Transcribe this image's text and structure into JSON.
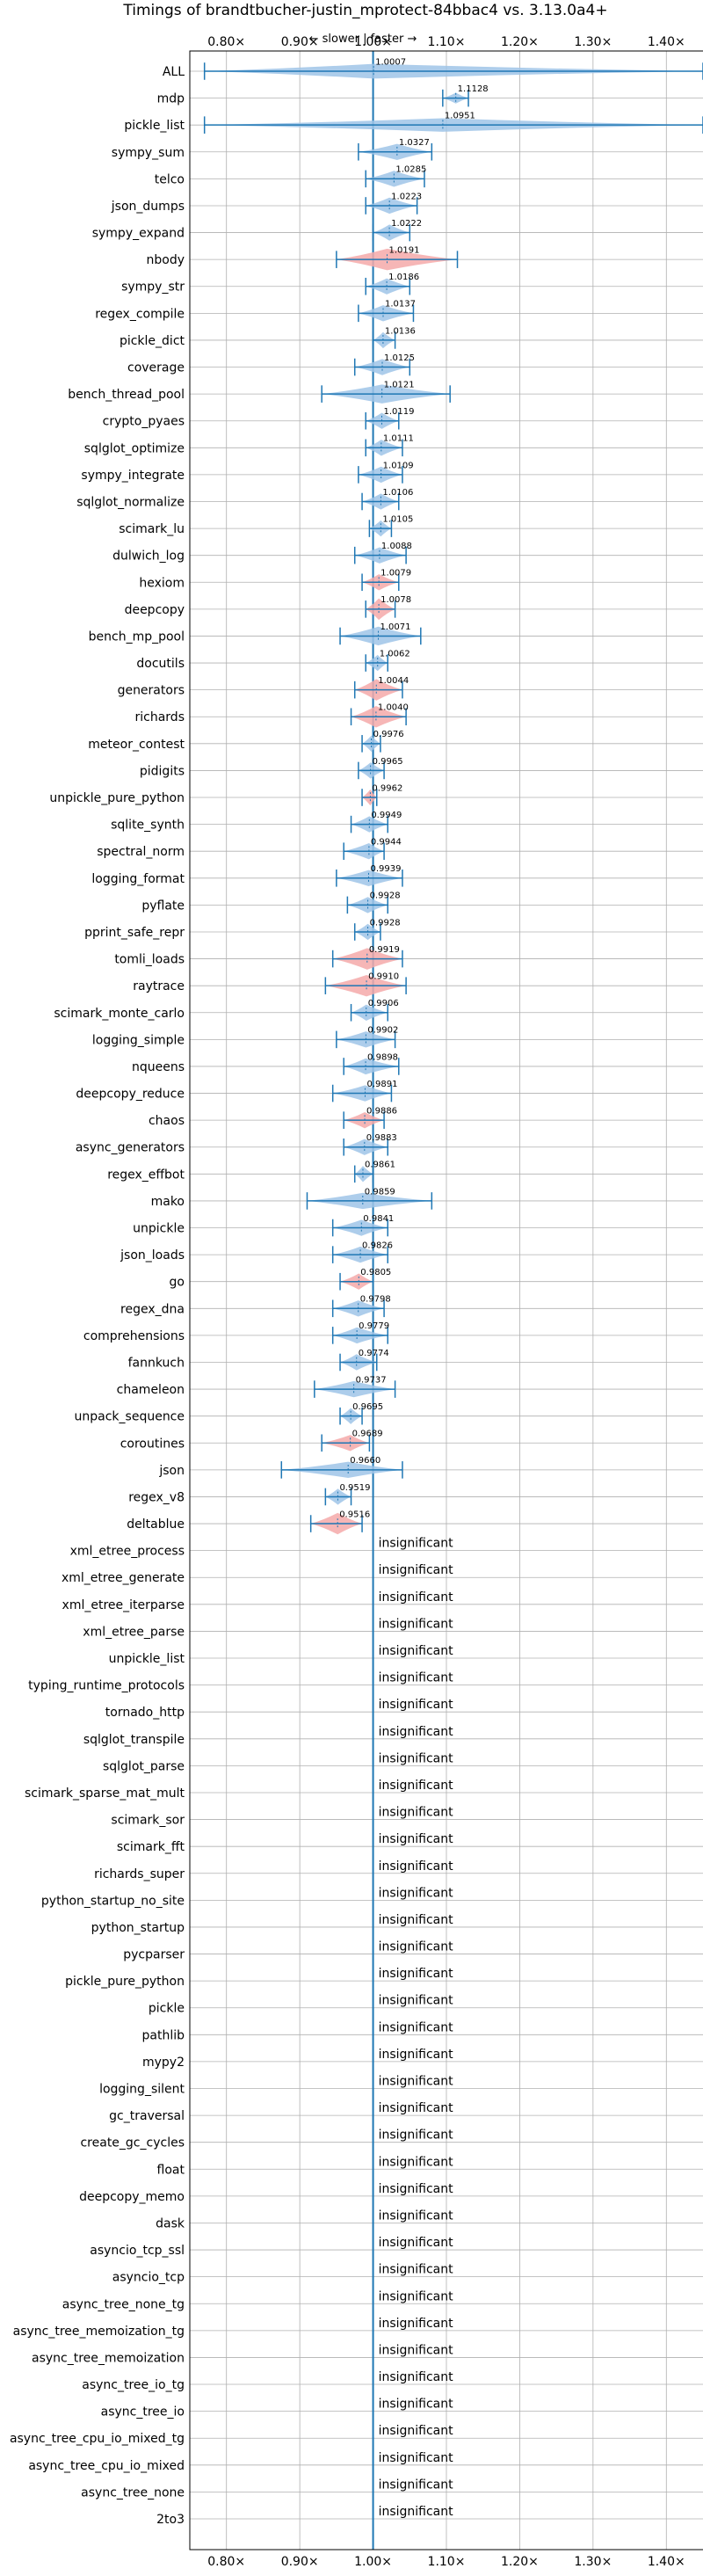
{
  "chart_data": {
    "type": "violin",
    "title": "Timings of brandtbucher-justin_mprotect-84bbac4 vs. 3.13.0a4+",
    "annotation": "← slower | faster →",
    "xlim": [
      0.75,
      1.45
    ],
    "xticks": [
      0.8,
      0.9,
      1.0,
      1.1,
      1.2,
      1.3,
      1.4
    ],
    "xtick_labels": [
      "0.80×",
      "0.90×",
      "1.00×",
      "1.10×",
      "1.20×",
      "1.30×",
      "1.40×"
    ],
    "reference_line": 1.0,
    "grid": true,
    "colors": {
      "faster": "#9fc4e7",
      "slower": "#f4a9a9",
      "line": "#1f77b4"
    },
    "insignificant_label": "insignificant",
    "benchmarks": [
      {
        "name": "ALL",
        "value": 1.0007,
        "label": "1.0007",
        "min": 0.77,
        "max": 1.45,
        "color": "faster",
        "w": 0.55
      },
      {
        "name": "mdp",
        "value": 1.1128,
        "label": "1.1128",
        "min": 1.095,
        "max": 1.13,
        "color": "faster",
        "w": 0.4
      },
      {
        "name": "pickle_list",
        "value": 1.0951,
        "label": "1.0951",
        "min": 0.77,
        "max": 1.45,
        "color": "faster",
        "w": 0.5
      },
      {
        "name": "sympy_sum",
        "value": 1.0327,
        "label": "1.0327",
        "min": 0.98,
        "max": 1.08,
        "color": "faster",
        "w": 0.6
      },
      {
        "name": "telco",
        "value": 1.0285,
        "label": "1.0285",
        "min": 0.99,
        "max": 1.07,
        "color": "faster",
        "w": 0.6
      },
      {
        "name": "json_dumps",
        "value": 1.0223,
        "label": "1.0223",
        "min": 0.99,
        "max": 1.06,
        "color": "faster",
        "w": 0.6
      },
      {
        "name": "sympy_expand",
        "value": 1.0222,
        "label": "1.0222",
        "min": 1.0,
        "max": 1.05,
        "color": "faster",
        "w": 0.6
      },
      {
        "name": "nbody",
        "value": 1.0191,
        "label": "1.0191",
        "min": 0.95,
        "max": 1.115,
        "color": "slower",
        "w": 0.8
      },
      {
        "name": "sympy_str",
        "value": 1.0186,
        "label": "1.0186",
        "min": 0.99,
        "max": 1.05,
        "color": "faster",
        "w": 0.6
      },
      {
        "name": "regex_compile",
        "value": 1.0137,
        "label": "1.0137",
        "min": 0.98,
        "max": 1.055,
        "color": "faster",
        "w": 0.6
      },
      {
        "name": "pickle_dict",
        "value": 1.0136,
        "label": "1.0136",
        "min": 1.0,
        "max": 1.03,
        "color": "faster",
        "w": 0.6
      },
      {
        "name": "coverage",
        "value": 1.0125,
        "label": "1.0125",
        "min": 0.975,
        "max": 1.05,
        "color": "faster",
        "w": 0.6
      },
      {
        "name": "bench_thread_pool",
        "value": 1.0121,
        "label": "1.0121",
        "min": 0.93,
        "max": 1.105,
        "color": "faster",
        "w": 0.7
      },
      {
        "name": "crypto_pyaes",
        "value": 1.0119,
        "label": "1.0119",
        "min": 0.99,
        "max": 1.035,
        "color": "faster",
        "w": 0.6
      },
      {
        "name": "sqlglot_optimize",
        "value": 1.0111,
        "label": "1.0111",
        "min": 0.99,
        "max": 1.04,
        "color": "faster",
        "w": 0.6
      },
      {
        "name": "sympy_integrate",
        "value": 1.0109,
        "label": "1.0109",
        "min": 0.98,
        "max": 1.04,
        "color": "faster",
        "w": 0.6
      },
      {
        "name": "sqlglot_normalize",
        "value": 1.0106,
        "label": "1.0106",
        "min": 0.985,
        "max": 1.035,
        "color": "faster",
        "w": 0.6
      },
      {
        "name": "scimark_lu",
        "value": 1.0105,
        "label": "1.0105",
        "min": 0.995,
        "max": 1.025,
        "color": "faster",
        "w": 0.6
      },
      {
        "name": "dulwich_log",
        "value": 1.0088,
        "label": "1.0088",
        "min": 0.975,
        "max": 1.045,
        "color": "faster",
        "w": 0.6
      },
      {
        "name": "hexiom",
        "value": 1.0079,
        "label": "1.0079",
        "min": 0.985,
        "max": 1.035,
        "color": "slower",
        "w": 0.6
      },
      {
        "name": "deepcopy",
        "value": 1.0078,
        "label": "1.0078",
        "min": 0.99,
        "max": 1.03,
        "color": "slower",
        "w": 0.8
      },
      {
        "name": "bench_mp_pool",
        "value": 1.0071,
        "label": "1.0071",
        "min": 0.955,
        "max": 1.065,
        "color": "faster",
        "w": 0.7
      },
      {
        "name": "docutils",
        "value": 1.0062,
        "label": "1.0062",
        "min": 0.99,
        "max": 1.02,
        "color": "faster",
        "w": 0.6
      },
      {
        "name": "generators",
        "value": 1.0044,
        "label": "1.0044",
        "min": 0.975,
        "max": 1.04,
        "color": "slower",
        "w": 0.8
      },
      {
        "name": "richards",
        "value": 1.004,
        "label": "1.0040",
        "min": 0.97,
        "max": 1.045,
        "color": "slower",
        "w": 0.8
      },
      {
        "name": "meteor_contest",
        "value": 0.9976,
        "label": "0.9976",
        "min": 0.985,
        "max": 1.01,
        "color": "faster",
        "w": 0.6
      },
      {
        "name": "pidigits",
        "value": 0.9965,
        "label": "0.9965",
        "min": 0.98,
        "max": 1.015,
        "color": "faster",
        "w": 0.6
      },
      {
        "name": "unpickle_pure_python",
        "value": 0.9962,
        "label": "0.9962",
        "min": 0.985,
        "max": 1.005,
        "color": "slower",
        "w": 0.6
      },
      {
        "name": "sqlite_synth",
        "value": 0.9949,
        "label": "0.9949",
        "min": 0.97,
        "max": 1.02,
        "color": "faster",
        "w": 0.6
      },
      {
        "name": "spectral_norm",
        "value": 0.9944,
        "label": "0.9944",
        "min": 0.96,
        "max": 1.015,
        "color": "faster",
        "w": 0.6
      },
      {
        "name": "logging_format",
        "value": 0.9939,
        "label": "0.9939",
        "min": 0.95,
        "max": 1.04,
        "color": "faster",
        "w": 0.6
      },
      {
        "name": "pyflate",
        "value": 0.9928,
        "label": "0.9928",
        "min": 0.965,
        "max": 1.02,
        "color": "faster",
        "w": 0.6
      },
      {
        "name": "pprint_safe_repr",
        "value": 0.9928,
        "label": "0.9928",
        "min": 0.975,
        "max": 1.01,
        "color": "faster",
        "w": 0.6
      },
      {
        "name": "tomli_loads",
        "value": 0.9919,
        "label": "0.9919",
        "min": 0.945,
        "max": 1.04,
        "color": "slower",
        "w": 0.8
      },
      {
        "name": "raytrace",
        "value": 0.991,
        "label": "0.9910",
        "min": 0.935,
        "max": 1.045,
        "color": "slower",
        "w": 0.8
      },
      {
        "name": "scimark_monte_carlo",
        "value": 0.9906,
        "label": "0.9906",
        "min": 0.97,
        "max": 1.02,
        "color": "faster",
        "w": 0.6
      },
      {
        "name": "logging_simple",
        "value": 0.9902,
        "label": "0.9902",
        "min": 0.95,
        "max": 1.03,
        "color": "faster",
        "w": 0.6
      },
      {
        "name": "nqueens",
        "value": 0.9898,
        "label": "0.9898",
        "min": 0.96,
        "max": 1.035,
        "color": "faster",
        "w": 0.6
      },
      {
        "name": "deepcopy_reduce",
        "value": 0.9891,
        "label": "0.9891",
        "min": 0.945,
        "max": 1.025,
        "color": "faster",
        "w": 0.6
      },
      {
        "name": "chaos",
        "value": 0.9886,
        "label": "0.9886",
        "min": 0.96,
        "max": 1.015,
        "color": "slower",
        "w": 0.6
      },
      {
        "name": "async_generators",
        "value": 0.9883,
        "label": "0.9883",
        "min": 0.96,
        "max": 1.02,
        "color": "faster",
        "w": 0.6
      },
      {
        "name": "regex_effbot",
        "value": 0.9861,
        "label": "0.9861",
        "min": 0.975,
        "max": 1.0,
        "color": "faster",
        "w": 0.6
      },
      {
        "name": "mako",
        "value": 0.9859,
        "label": "0.9859",
        "min": 0.91,
        "max": 1.08,
        "color": "faster",
        "w": 0.6
      },
      {
        "name": "unpickle",
        "value": 0.9841,
        "label": "0.9841",
        "min": 0.945,
        "max": 1.02,
        "color": "faster",
        "w": 0.6
      },
      {
        "name": "json_loads",
        "value": 0.9826,
        "label": "0.9826",
        "min": 0.945,
        "max": 1.02,
        "color": "faster",
        "w": 0.6
      },
      {
        "name": "go",
        "value": 0.9805,
        "label": "0.9805",
        "min": 0.955,
        "max": 1.0,
        "color": "slower",
        "w": 0.6
      },
      {
        "name": "regex_dna",
        "value": 0.9798,
        "label": "0.9798",
        "min": 0.945,
        "max": 1.015,
        "color": "faster",
        "w": 0.6
      },
      {
        "name": "comprehensions",
        "value": 0.9779,
        "label": "0.9779",
        "min": 0.945,
        "max": 1.02,
        "color": "faster",
        "w": 0.6
      },
      {
        "name": "fannkuch",
        "value": 0.9774,
        "label": "0.9774",
        "min": 0.955,
        "max": 1.005,
        "color": "faster",
        "w": 0.6
      },
      {
        "name": "chameleon",
        "value": 0.9737,
        "label": "0.9737",
        "min": 0.92,
        "max": 1.03,
        "color": "faster",
        "w": 0.6
      },
      {
        "name": "unpack_sequence",
        "value": 0.9695,
        "label": "0.9695",
        "min": 0.955,
        "max": 0.985,
        "color": "faster",
        "w": 0.6
      },
      {
        "name": "coroutines",
        "value": 0.9689,
        "label": "0.9689",
        "min": 0.93,
        "max": 0.995,
        "color": "slower",
        "w": 0.6
      },
      {
        "name": "json",
        "value": 0.966,
        "label": "0.9660",
        "min": 0.875,
        "max": 1.04,
        "color": "faster",
        "w": 0.6
      },
      {
        "name": "regex_v8",
        "value": 0.9519,
        "label": "0.9519",
        "min": 0.935,
        "max": 0.97,
        "color": "faster",
        "w": 0.6
      },
      {
        "name": "deltablue",
        "value": 0.9516,
        "label": "0.9516",
        "min": 0.915,
        "max": 0.985,
        "color": "slower",
        "w": 0.8
      }
    ],
    "insignificant": [
      "xml_etree_process",
      "xml_etree_generate",
      "xml_etree_iterparse",
      "xml_etree_parse",
      "unpickle_list",
      "typing_runtime_protocols",
      "tornado_http",
      "sqlglot_transpile",
      "sqlglot_parse",
      "scimark_sparse_mat_mult",
      "scimark_sor",
      "scimark_fft",
      "richards_super",
      "python_startup_no_site",
      "python_startup",
      "pycparser",
      "pickle_pure_python",
      "pickle",
      "pathlib",
      "mypy2",
      "logging_silent",
      "gc_traversal",
      "create_gc_cycles",
      "float",
      "deepcopy_memo",
      "dask",
      "asyncio_tcp_ssl",
      "asyncio_tcp",
      "async_tree_none_tg",
      "async_tree_memoization_tg",
      "async_tree_memoization",
      "async_tree_io_tg",
      "async_tree_io",
      "async_tree_cpu_io_mixed_tg",
      "async_tree_cpu_io_mixed",
      "async_tree_none",
      "2to3"
    ]
  }
}
